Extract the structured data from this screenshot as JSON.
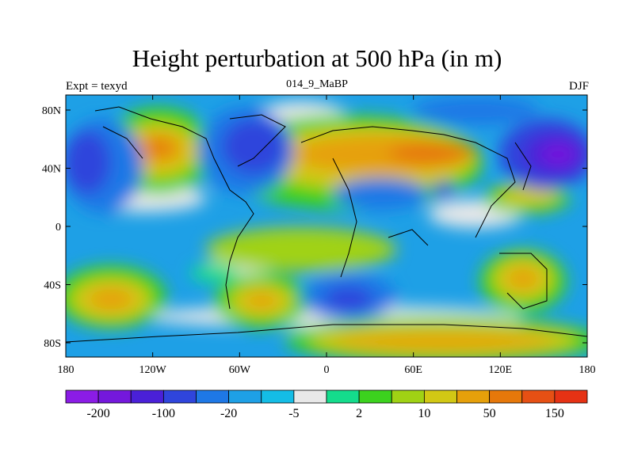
{
  "title": "Height perturbation at 500 hPa (in m)",
  "subtitle_left": "Expt = texyd",
  "subtitle_center": "014_9_MaBP",
  "subtitle_right": "DJF",
  "axes": {
    "x_ticks": [
      "180",
      "120W",
      "60W",
      "0",
      "60E",
      "120E",
      "180"
    ],
    "y_ticks": [
      "80N",
      "40N",
      "0",
      "40S",
      "80S"
    ]
  },
  "colorbar": {
    "labels": [
      "-200",
      "-100",
      "-20",
      "-5",
      "2",
      "10",
      "50",
      "150"
    ],
    "colors": [
      "#8b1ce6",
      "#7418dc",
      "#4a20d8",
      "#2f45dc",
      "#1e78e6",
      "#1ea0e6",
      "#14bde6",
      "#e8e8e8",
      "#14dc8c",
      "#3cd21e",
      "#a0d214",
      "#d2c814",
      "#e6a00a",
      "#e6780a",
      "#e65014",
      "#e63214"
    ]
  }
}
